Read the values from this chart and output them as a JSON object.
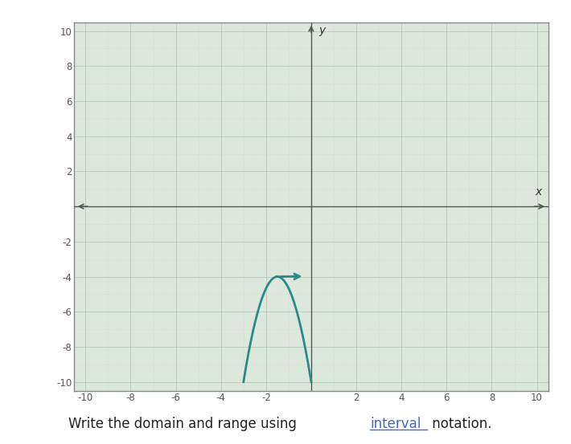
{
  "xlabel": "x",
  "ylabel": "y",
  "xlim": [
    -10.5,
    10.5
  ],
  "ylim": [
    -10.5,
    10.5
  ],
  "xticks": [
    -10,
    -8,
    -6,
    -4,
    -2,
    2,
    4,
    6,
    8,
    10
  ],
  "yticks": [
    -10,
    -8,
    -6,
    -4,
    -2,
    2,
    4,
    6,
    8,
    10
  ],
  "grid_minor_color": "#c5d5c5",
  "grid_major_color": "#b0c4b0",
  "axis_color": "#555555",
  "curve_color": "#2a8a8a",
  "curve_linewidth": 2.0,
  "background_color": "#ffffff",
  "plot_bg_color": "#dce8dc",
  "border_color": "#888888",
  "vertex_x": -1.5,
  "vertex_y": -4.0,
  "parabola_a": -2.6667,
  "x_start": -3.0,
  "x_end": 0.0,
  "text_color": "#222222",
  "link_color": "#4466cc"
}
